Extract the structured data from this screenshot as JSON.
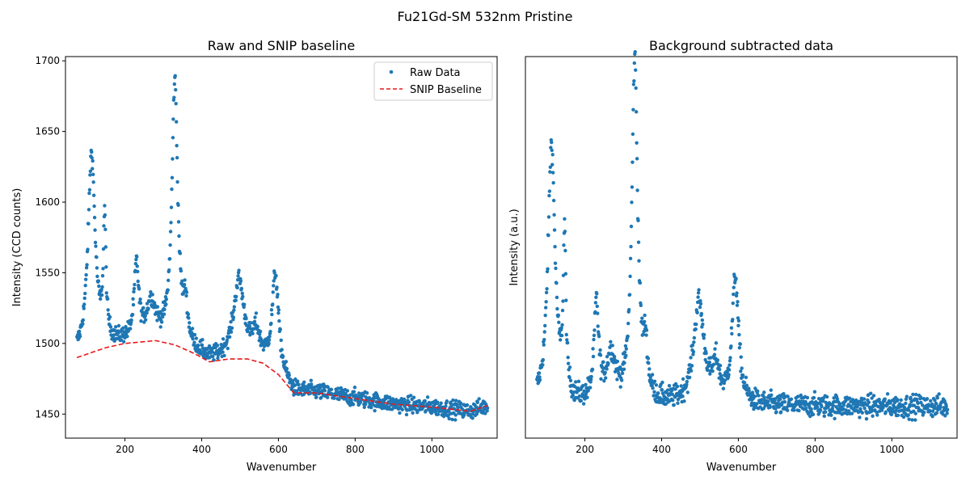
{
  "figure": {
    "suptitle": "Fu21Gd-SM 532nm Pristine"
  },
  "chart_data": [
    {
      "type": "scatter",
      "title": "Raw and SNIP baseline",
      "xlabel": "Wavenumber",
      "ylabel": "Intensity (CCD counts)",
      "xlim": [
        45,
        1170
      ],
      "ylim": [
        1433,
        1703
      ],
      "xticks": [
        "200",
        "400",
        "600",
        "800",
        "1000"
      ],
      "xtick_values": [
        200,
        400,
        600,
        800,
        1000
      ],
      "yticks": [
        "1450",
        "1500",
        "1550",
        "1600",
        "1650",
        "1700"
      ],
      "ytick_values": [
        1450,
        1500,
        1550,
        1600,
        1650,
        1700
      ],
      "show_y_tick_labels": true,
      "grid": false,
      "legend": {
        "placement": "top-right",
        "entries": [
          "Raw Data",
          "SNIP Baseline"
        ]
      },
      "colors": {
        "points": "#1f77b4",
        "baseline": "#e8181b"
      },
      "series": [
        {
          "name": "Raw Data",
          "kind": "scatter",
          "x_start": 75,
          "x_end": 1145,
          "x_step": 1,
          "background_points": [
            [
              75,
              1490
            ],
            [
              150,
              1497
            ],
            [
              200,
              1500
            ],
            [
              280,
              1502
            ],
            [
              330,
              1499
            ],
            [
              380,
              1493
            ],
            [
              420,
              1487
            ],
            [
              470,
              1489
            ],
            [
              520,
              1489
            ],
            [
              560,
              1486
            ],
            [
              600,
              1478
            ],
            [
              640,
              1465
            ],
            [
              700,
              1465
            ],
            [
              800,
              1461
            ],
            [
              900,
              1457
            ],
            [
              1000,
              1455
            ],
            [
              1100,
              1452
            ],
            [
              1145,
              1456
            ]
          ],
          "peaks": [
            {
              "center": 113,
              "height": 140,
              "width": 11
            },
            {
              "center": 147,
              "height": 85,
              "width": 4
            },
            {
              "center": 230,
              "height": 52,
              "width": 7
            },
            {
              "center": 268,
              "height": 25,
              "width": 14
            },
            {
              "center": 330,
              "height": 185,
              "width": 9
            },
            {
              "center": 358,
              "height": 25,
              "width": 6
            },
            {
              "center": 497,
              "height": 55,
              "width": 16
            },
            {
              "center": 542,
              "height": 18,
              "width": 10
            },
            {
              "center": 592,
              "height": 68,
              "width": 10
            }
          ],
          "noise": 5
        },
        {
          "name": "SNIP Baseline",
          "kind": "line",
          "style": "dashed",
          "points": [
            [
              75,
              1490
            ],
            [
              150,
              1497
            ],
            [
              200,
              1500
            ],
            [
              280,
              1502
            ],
            [
              330,
              1499
            ],
            [
              380,
              1493
            ],
            [
              420,
              1487
            ],
            [
              470,
              1489
            ],
            [
              520,
              1489
            ],
            [
              560,
              1486
            ],
            [
              600,
              1478
            ],
            [
              640,
              1465
            ],
            [
              700,
              1465
            ],
            [
              800,
              1461
            ],
            [
              900,
              1457
            ],
            [
              1000,
              1455
            ],
            [
              1100,
              1452
            ],
            [
              1145,
              1456
            ]
          ]
        }
      ]
    },
    {
      "type": "scatter",
      "title": "Background subtracted data",
      "xlabel": "Wavenumber",
      "ylabel": "Intensity (a.u.)",
      "xlim": [
        45,
        1170
      ],
      "ylim": [
        -5,
        200
      ],
      "xticks": [
        "200",
        "400",
        "600",
        "800",
        "1000"
      ],
      "xtick_values": [
        200,
        400,
        600,
        800,
        1000
      ],
      "show_y_tick_labels": false,
      "grid": false,
      "colors": {
        "points": "#1f77b4"
      },
      "series": [
        {
          "name": "",
          "kind": "scatter",
          "derived": "raw minus baseline"
        }
      ]
    }
  ]
}
